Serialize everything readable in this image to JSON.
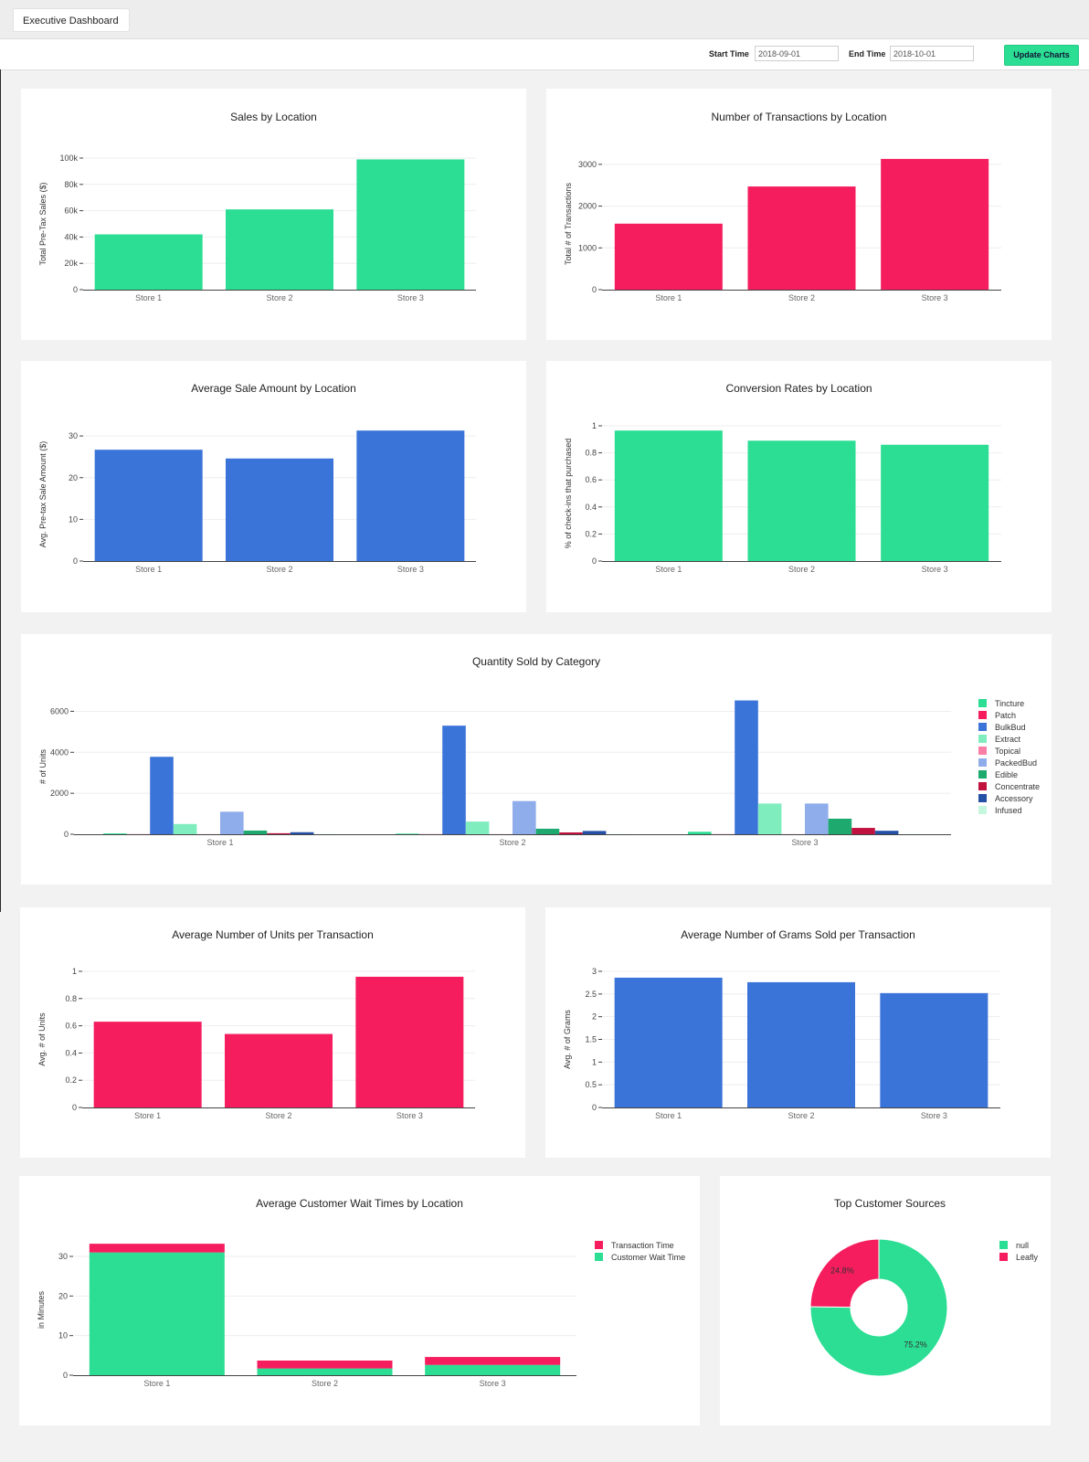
{
  "header": {
    "dashboard_label": "Executive Dashboard",
    "start_label": "Start Time",
    "start_value": "2018-09-01",
    "end_label": "End Time",
    "end_value": "2018-10-01",
    "update_label": "Update Charts"
  },
  "colors": {
    "green": "#2bde93",
    "red": "#f51d5e",
    "blue": "#3b74d8"
  },
  "chart_data": [
    {
      "id": "c1",
      "type": "bar",
      "title": "Sales by Location",
      "ylabel": "Total Pre-Tax Sales ($)",
      "categories": [
        "Store 1",
        "Store 2",
        "Store 3"
      ],
      "values": [
        42000,
        61000,
        99000
      ],
      "ylim": [
        0,
        100000
      ],
      "ticks": [
        0,
        20000,
        40000,
        60000,
        80000,
        100000
      ],
      "tick_labels": [
        "0",
        "20k",
        "40k",
        "60k",
        "80k",
        "100k"
      ],
      "color": "#2bde93"
    },
    {
      "id": "c2",
      "type": "bar",
      "title": "Number of Transactions by Location",
      "ylabel": "Total # of Transactions",
      "categories": [
        "Store 1",
        "Store 2",
        "Store 3"
      ],
      "values": [
        1580,
        2470,
        3130
      ],
      "ylim": [
        0,
        3150
      ],
      "ticks": [
        0,
        1000,
        2000,
        3000
      ],
      "tick_labels": [
        "0",
        "1000",
        "2000",
        "3000"
      ],
      "color": "#f51d5e"
    },
    {
      "id": "c3",
      "type": "bar",
      "title": "Average Sale Amount by Location",
      "ylabel": "Avg. Pre-tax Sale Amount ($)",
      "categories": [
        "Store 1",
        "Store 2",
        "Store 3"
      ],
      "values": [
        26.7,
        24.6,
        31.3
      ],
      "ylim": [
        0,
        32
      ],
      "ticks": [
        0,
        10,
        20,
        30
      ],
      "tick_labels": [
        "0",
        "10",
        "20",
        "30"
      ],
      "color": "#3b74d8"
    },
    {
      "id": "c4",
      "type": "bar",
      "title": "Conversion Rates by Location",
      "ylabel": "% of check-ins that purchased",
      "categories": [
        "Store 1",
        "Store 2",
        "Store 3"
      ],
      "values": [
        0.965,
        0.89,
        0.86
      ],
      "ylim": [
        0,
        1
      ],
      "ticks": [
        0,
        0.2,
        0.4,
        0.6,
        0.8,
        1
      ],
      "tick_labels": [
        "0",
        "0.2",
        "0.4",
        "0.6",
        "0.8",
        "1"
      ],
      "color": "#2bde93"
    },
    {
      "id": "c5",
      "type": "grouped-bar",
      "title": "Quantity Sold by Category",
      "ylabel": "# of Units",
      "categories": [
        "Store 1",
        "Store 2",
        "Store 3"
      ],
      "ylim": [
        0,
        6600
      ],
      "ticks": [
        0,
        2000,
        4000,
        6000
      ],
      "tick_labels": [
        "0",
        "2000",
        "4000",
        "6000"
      ],
      "series": [
        {
          "name": "Tincture",
          "color": "#2bde93",
          "values": [
            40,
            30,
            120
          ]
        },
        {
          "name": "Patch",
          "color": "#f51d5e",
          "values": [
            5,
            5,
            5
          ]
        },
        {
          "name": "BulkBud",
          "color": "#3b74d8",
          "values": [
            3780,
            5300,
            6530
          ]
        },
        {
          "name": "Extract",
          "color": "#80edbf",
          "values": [
            500,
            620,
            1500
          ]
        },
        {
          "name": "Topical",
          "color": "#fa7fa6",
          "values": [
            5,
            5,
            5
          ]
        },
        {
          "name": "PackedBud",
          "color": "#8fadeb",
          "values": [
            1100,
            1620,
            1500
          ]
        },
        {
          "name": "Edible",
          "color": "#1ea96f",
          "values": [
            180,
            270,
            760
          ]
        },
        {
          "name": "Concentrate",
          "color": "#c1113f",
          "values": [
            50,
            90,
            310
          ]
        },
        {
          "name": "Accessory",
          "color": "#2451a6",
          "values": [
            100,
            160,
            170
          ]
        },
        {
          "name": "Infused",
          "color": "#c5f7df",
          "values": [
            5,
            5,
            5
          ]
        }
      ]
    },
    {
      "id": "c6",
      "type": "bar",
      "title": "Average Number of Units per Transaction",
      "ylabel": "Avg. # of Units",
      "categories": [
        "Store 1",
        "Store 2",
        "Store 3"
      ],
      "values": [
        0.63,
        0.54,
        0.96
      ],
      "ylim": [
        0,
        1
      ],
      "ticks": [
        0,
        0.2,
        0.4,
        0.6,
        0.8,
        1
      ],
      "tick_labels": [
        "0",
        "0.2",
        "0.4",
        "0.6",
        "0.8",
        "1"
      ],
      "color": "#f51d5e"
    },
    {
      "id": "c7",
      "type": "bar",
      "title": "Average Number of Grams Sold per Transaction",
      "ylabel": "Avg. # of Grams",
      "categories": [
        "Store 1",
        "Store 2",
        "Store 3"
      ],
      "values": [
        2.86,
        2.76,
        2.52
      ],
      "ylim": [
        0,
        3
      ],
      "ticks": [
        0,
        0.5,
        1,
        1.5,
        2,
        2.5,
        3
      ],
      "tick_labels": [
        "0",
        "0.5",
        "1",
        "1.5",
        "2",
        "2.5",
        "3"
      ],
      "color": "#3b74d8"
    },
    {
      "id": "c8",
      "type": "stacked-bar",
      "title": "Average Customer Wait Times by Location",
      "ylabel": "in Minutes",
      "categories": [
        "Store 1",
        "Store 2",
        "Store 3"
      ],
      "ylim": [
        0,
        33
      ],
      "ticks": [
        0,
        10,
        20,
        30
      ],
      "tick_labels": [
        "0",
        "10",
        "20",
        "30"
      ],
      "series": [
        {
          "name": "Customer Wait Time",
          "color": "#2bde93",
          "values": [
            31,
            1.7,
            2.6
          ]
        },
        {
          "name": "Transaction Time",
          "color": "#f51d5e",
          "values": [
            2.2,
            2.0,
            2.0
          ]
        }
      ]
    },
    {
      "id": "c9",
      "type": "pie",
      "title": "Top Customer Sources",
      "labels": [
        "null",
        "Leafly"
      ],
      "values": [
        75.2,
        24.8
      ],
      "value_labels": [
        "75.2%",
        "24.8%"
      ],
      "colors": [
        "#2bde93",
        "#f51d5e"
      ]
    }
  ]
}
